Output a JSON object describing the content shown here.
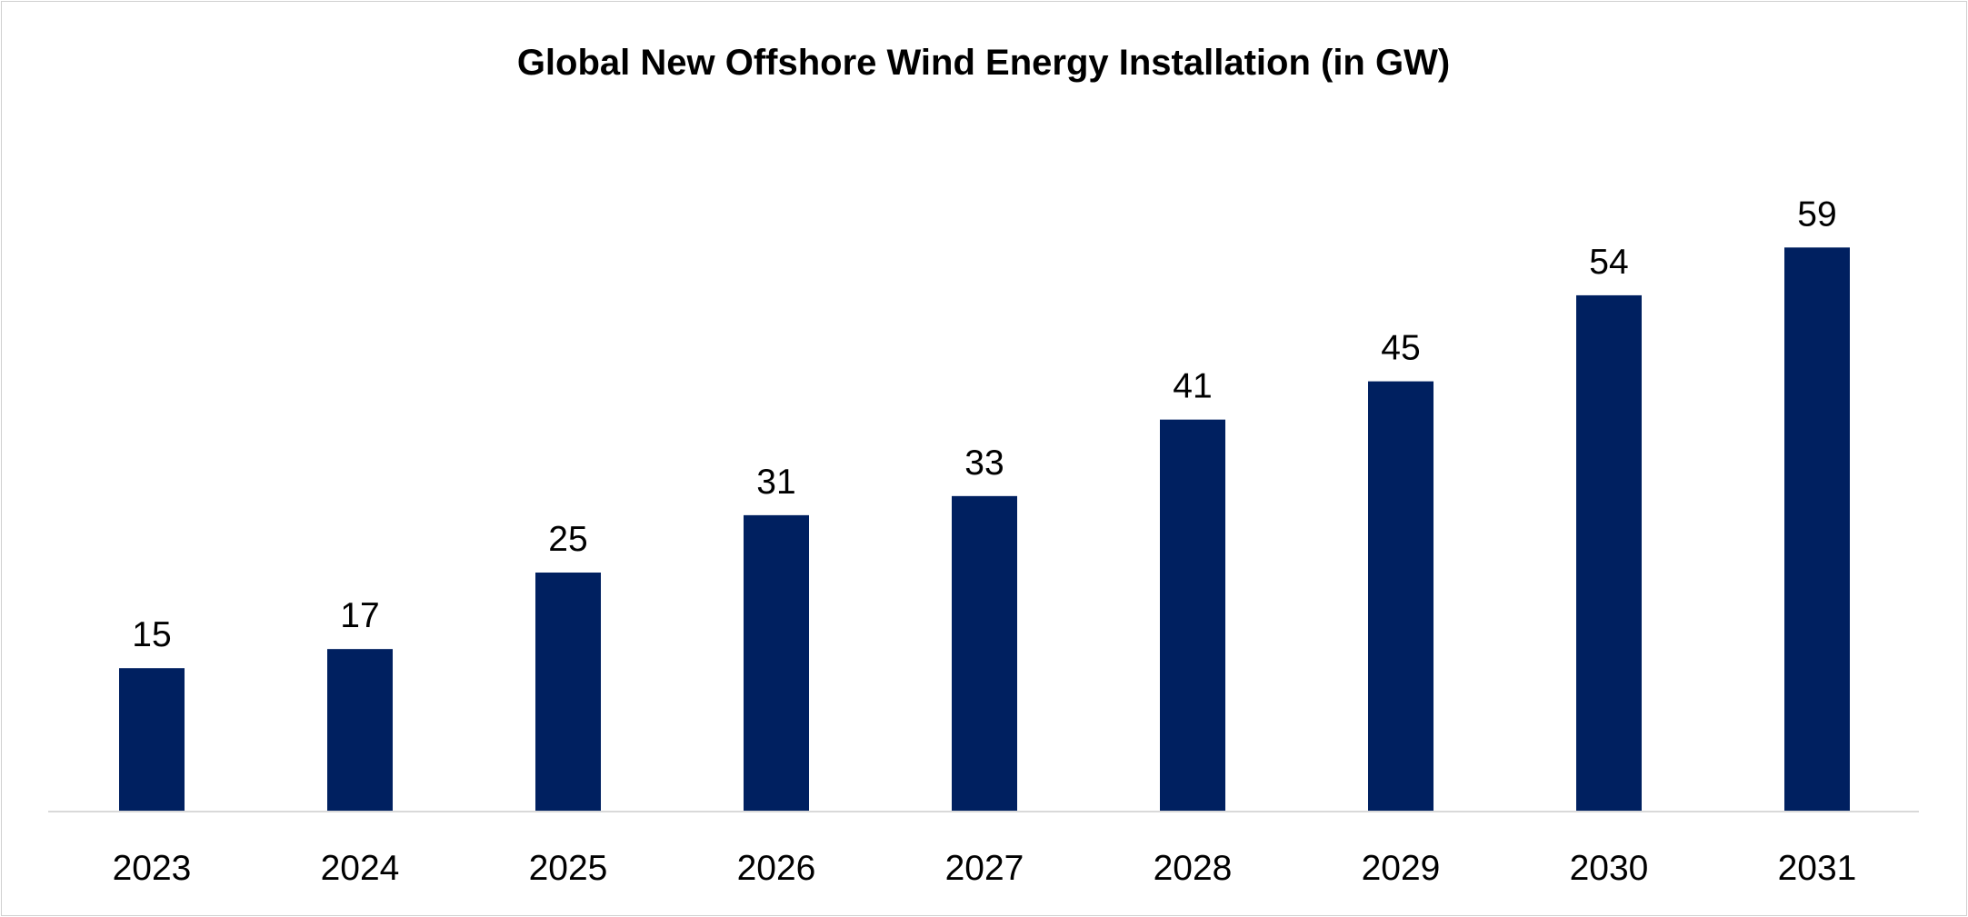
{
  "chart_data": {
    "type": "bar",
    "title": "Global New Offshore Wind Energy Installation (in GW)",
    "categories": [
      "2023",
      "2024",
      "2025",
      "2026",
      "2027",
      "2028",
      "2029",
      "2030",
      "2031"
    ],
    "values": [
      15,
      17,
      25,
      31,
      33,
      41,
      45,
      54,
      59
    ],
    "data_labels": [
      "15",
      "17",
      "25",
      "31",
      "33",
      "41",
      "45",
      "54",
      "59"
    ],
    "xlabel": "",
    "ylabel": "",
    "ylim": [
      0,
      66
    ],
    "grid": false,
    "legend": "none",
    "bar_color": "#002060",
    "axis_color": "#d9d9d9"
  }
}
